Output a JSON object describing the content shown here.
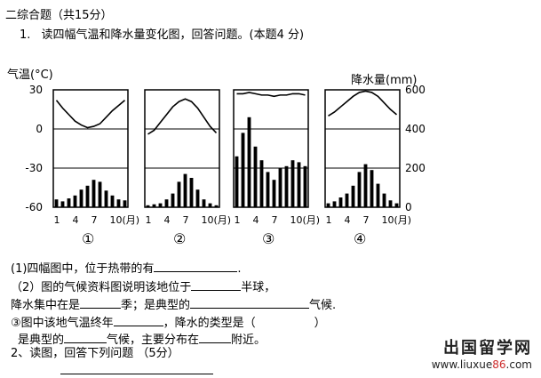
{
  "section_title": "二综合题（共15分）",
  "q1": {
    "number": "1.",
    "text": "读四幅气温和降水量变化图，回答问题。(本题4 分)"
  },
  "chart_data": {
    "type": "bar",
    "left_axis_label": "气温(°C)",
    "right_axis_label": "降水量(mm)",
    "left_ticks": [
      "30",
      "0",
      "-30",
      "-60"
    ],
    "right_ticks": [
      "600",
      "400",
      "200",
      "0"
    ],
    "ylim_temp": [
      -60,
      30
    ],
    "ylim_precip": [
      0,
      600
    ],
    "x_ticks": [
      "1",
      "4",
      "7",
      "10(月)"
    ],
    "panels": [
      {
        "label": "①",
        "temperature": [
          22,
          16,
          11,
          6,
          3,
          1,
          2,
          4,
          9,
          14,
          18,
          22
        ],
        "precipitation": [
          40,
          30,
          45,
          60,
          90,
          110,
          140,
          130,
          85,
          60,
          40,
          35
        ]
      },
      {
        "label": "②",
        "temperature": [
          -4,
          -1,
          5,
          11,
          17,
          21,
          23,
          21,
          16,
          9,
          2,
          -3
        ],
        "precipitation": [
          10,
          15,
          20,
          40,
          70,
          130,
          170,
          150,
          90,
          40,
          20,
          10
        ]
      },
      {
        "label": "③",
        "temperature": [
          27,
          27,
          28,
          27,
          26,
          26,
          25,
          26,
          26,
          27,
          27,
          26
        ],
        "precipitation": [
          260,
          380,
          460,
          310,
          240,
          180,
          140,
          200,
          210,
          240,
          230,
          210
        ]
      },
      {
        "label": "④",
        "temperature": [
          10,
          13,
          17,
          21,
          25,
          28,
          29,
          28,
          25,
          20,
          15,
          11
        ],
        "precipitation": [
          20,
          30,
          50,
          70,
          110,
          180,
          220,
          190,
          120,
          70,
          35,
          20
        ]
      }
    ]
  },
  "sub1": "(1)四幅图中，位于热带的有",
  "sub1_end": ".",
  "sub2_a": "（2）图的气候资料图说明该地位于",
  "sub2_b": "半球，",
  "sub3_a": "降水集中在是",
  "sub3_b": "季；是典型的",
  "sub3_c": "气候.",
  "sub4_a": "③图中该地气温终年",
  "sub4_b": "，降水的类型是（",
  "sub4_c": "）",
  "sub5_a": "是典型的",
  "sub5_b": "气候，主要分布在",
  "sub5_c": "附近。",
  "q2": "2、读图，回答下列问题   （5分）",
  "watermark": {
    "cn": "出国留学网",
    "url_a": "www.liuxue",
    "url_num": "86",
    "url_b": ".com"
  }
}
